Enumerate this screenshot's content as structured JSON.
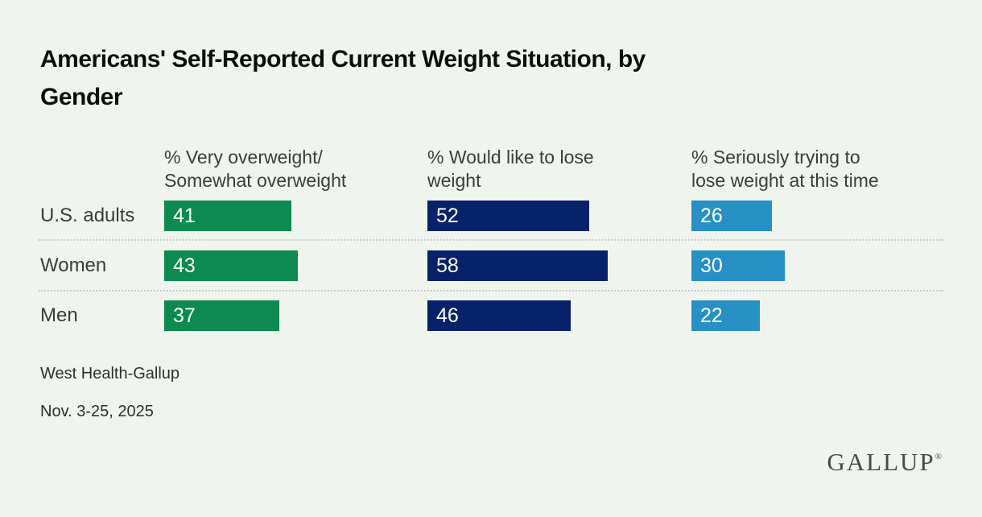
{
  "title": "Americans' Self-Reported Current Weight Situation, by\nGender",
  "chart_data": {
    "type": "bar",
    "orientation": "horizontal",
    "categories": [
      "U.S. adults",
      "Women",
      "Men"
    ],
    "series": [
      {
        "name": "% Very overweight/Somewhat overweight",
        "header_label": "% Very overweight/\nSomewhat overweight",
        "color": "#0c8a4f",
        "values": [
          41,
          43,
          37
        ]
      },
      {
        "name": "% Would like to lose weight",
        "header_label": "% Would like to lose\nweight",
        "color": "#07226a",
        "values": [
          52,
          58,
          46
        ]
      },
      {
        "name": "% Seriously trying to lose weight at this time",
        "header_label": "% Seriously trying to\nlose weight at this time",
        "color": "#2790c4",
        "values": [
          26,
          30,
          22
        ]
      }
    ],
    "unit": "%",
    "value_range": [
      0,
      100
    ],
    "data_labels": "inside-left",
    "grid": "dotted-row-separators",
    "legend_position": "column-headers-top"
  },
  "footer": {
    "source": "West Health-Gallup",
    "dates": "Nov. 3-25, 2025"
  },
  "branding": {
    "logo_text": "GALLUP",
    "registered_mark": "®"
  },
  "colors": {
    "background": "#eff5ee",
    "title_text": "#0d0d0d",
    "label_text": "#3c3c3c",
    "bar_value_text": "#ffffff",
    "separator": "#c7cdc7",
    "logo_text": "#4b4a45",
    "series_green": "#0c8a4f",
    "series_navy": "#07226a",
    "series_blue": "#2790c4"
  }
}
